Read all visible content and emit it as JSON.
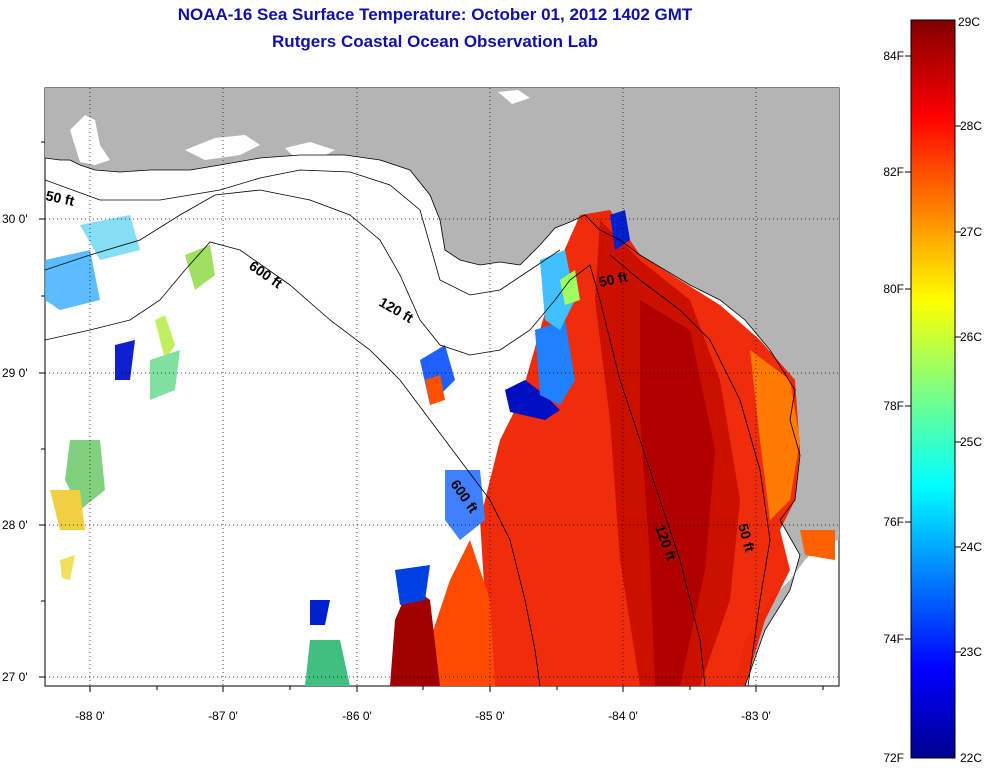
{
  "header": {
    "title": "NOAA-16 Sea Surface Temperature:  October 01, 2012 1402 GMT",
    "subtitle": "Rutgers Coastal Ocean Observation Lab"
  },
  "map": {
    "lon_ticks": [
      "-88 0'",
      "-87 0'",
      "-86 0'",
      "-85 0'",
      "-84 0'",
      "-83 0'"
    ],
    "lat_ticks": [
      "30 0'",
      "29 0'",
      "28 0'",
      "27 0'"
    ],
    "isobath_labels": [
      "50 ft",
      "600 ft",
      "120 ft",
      "50 ft",
      "600 ft",
      "120 ft",
      "50 ft"
    ],
    "land_color": "#b4b4b4",
    "ocean_color": "#ffffff",
    "grid": "dotted"
  },
  "colorbar": {
    "fahrenheit_labels": [
      "84F",
      "82F",
      "80F",
      "78F",
      "76F",
      "74F",
      "72F"
    ],
    "celsius_labels": [
      "29C",
      "28C",
      "27C",
      "26C",
      "25C",
      "24C",
      "23C",
      "22C"
    ],
    "colormap": "jet",
    "min_c": 22,
    "max_c": 29
  }
}
